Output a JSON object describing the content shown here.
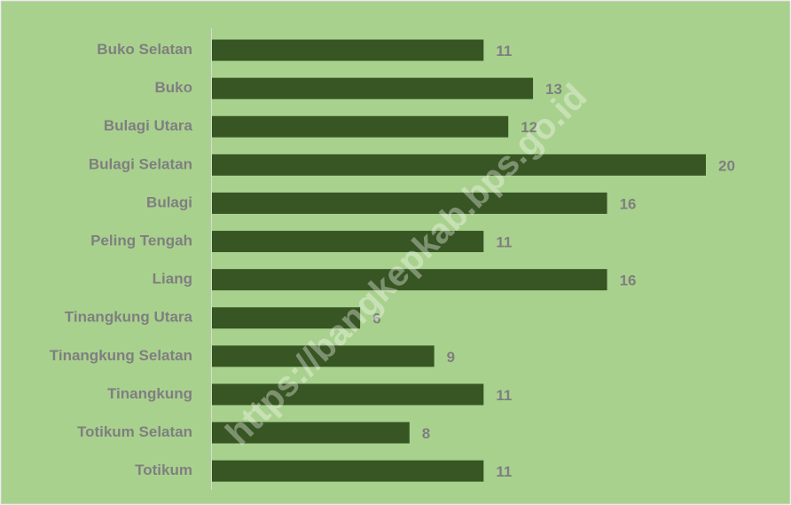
{
  "chart_data": {
    "type": "bar",
    "orientation": "horizontal",
    "categories": [
      "Buko Selatan",
      "Buko",
      "Bulagi Utara",
      "Bulagi Selatan",
      "Bulagi",
      "Peling Tengah",
      "Liang",
      "Tinangkung Utara",
      "Tinangkung Selatan",
      "Tinangkung",
      "Totikum Selatan",
      "Totikum"
    ],
    "values": [
      11,
      13,
      12,
      20,
      16,
      11,
      16,
      6,
      9,
      11,
      8,
      11
    ],
    "color": "#375623",
    "background": "#a9d18e",
    "watermark": "https://bangkepkab.bps.go.id"
  }
}
